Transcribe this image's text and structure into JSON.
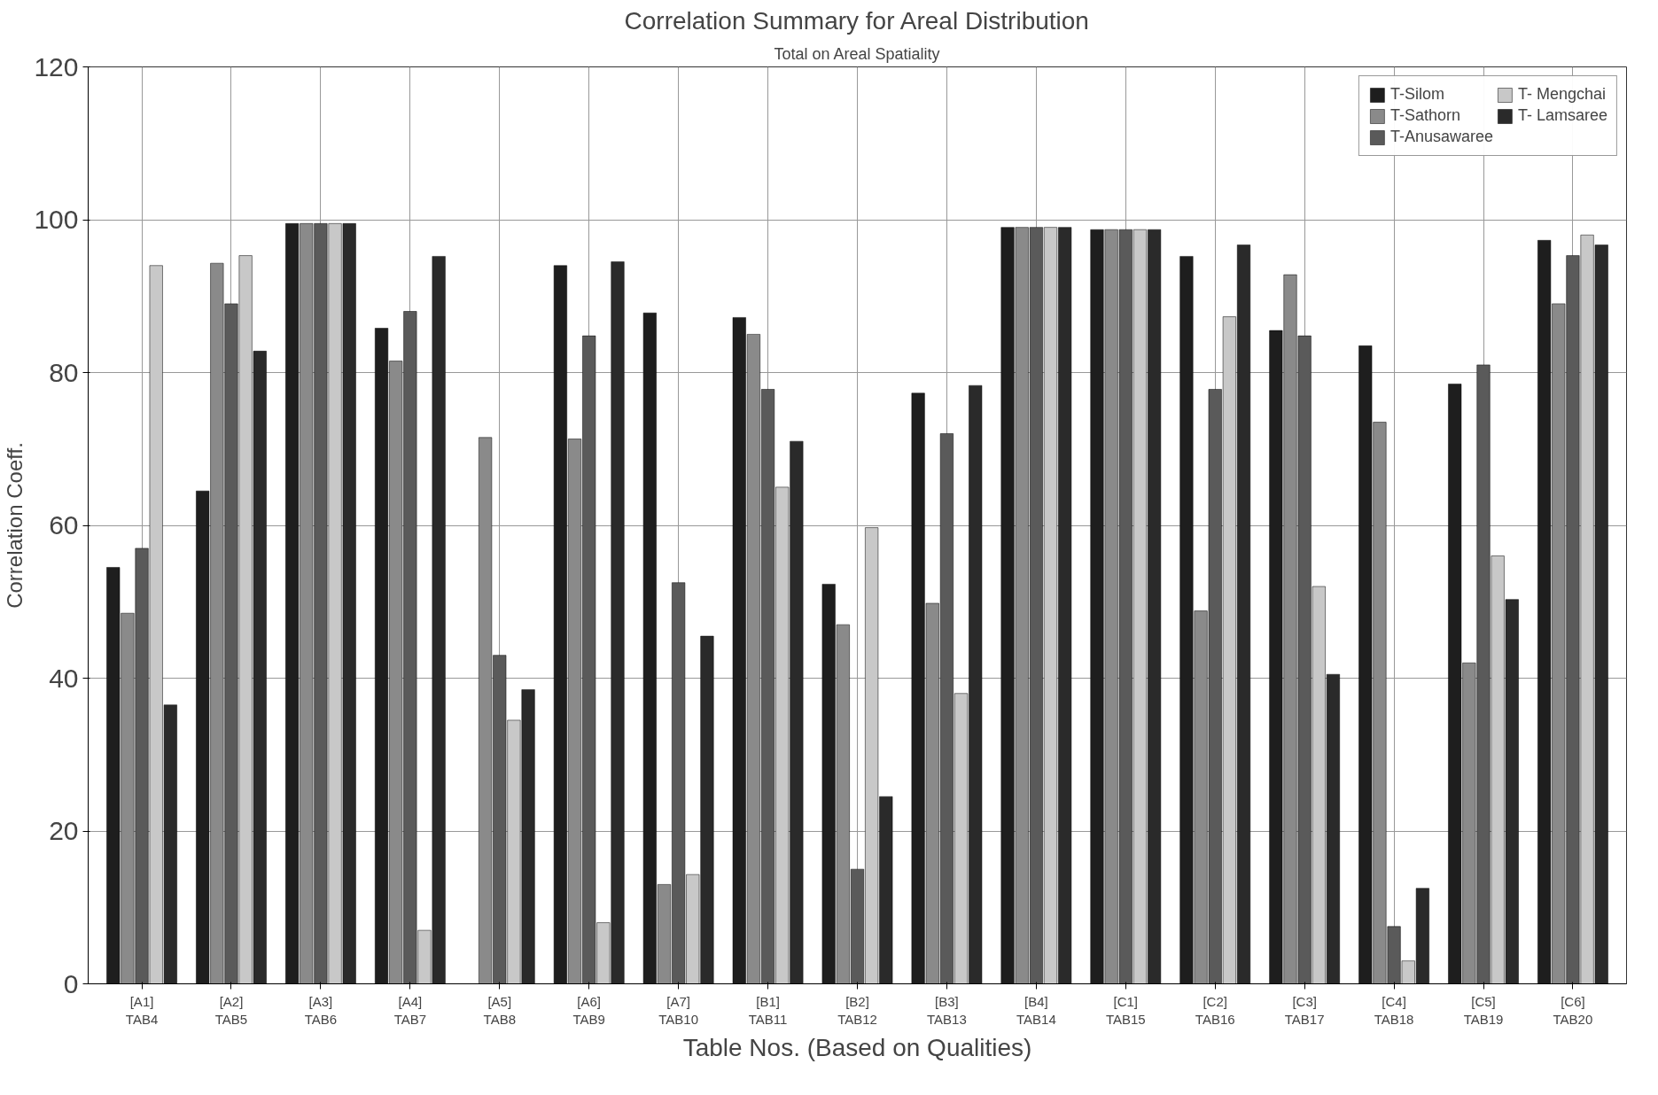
{
  "chart_data": {
    "type": "bar",
    "title": "Correlation Summary for Areal Distribution",
    "subtitle": "Total on Areal Spatiality",
    "xlabel": "Table Nos. (Based on Qualities)",
    "ylabel": "Correlation Coeff.",
    "categories": [
      "[A1]\nTAB4",
      "[A2]\nTAB5",
      "[A3]\nTAB6",
      "[A4]\nTAB7",
      "[A5]\nTAB8",
      "[A6]\nTAB9",
      "[A7]\nTAB10",
      "[B1]\nTAB11",
      "[B2]\nTAB12",
      "[B3]\nTAB13",
      "[B4]\nTAB14",
      "[C1]\nTAB15",
      "[C2]\nTAB16",
      "[C3]\nTAB17",
      "[C4]\nTAB18",
      "[C5]\nTAB19",
      "[C6]\nTAB20"
    ],
    "series": [
      {
        "name": "T-Silom",
        "color": "#1e1e1e",
        "values": [
          54.5,
          64.5,
          99.5,
          85.8,
          null,
          94,
          87.8,
          87.2,
          52.3,
          77.3,
          99,
          98.7,
          95.2,
          85.5,
          83.5,
          78.5,
          97.3
        ]
      },
      {
        "name": "T-Sathorn",
        "color": "#8a8a8a",
        "values": [
          48.5,
          94.3,
          99.5,
          81.5,
          71.5,
          71.3,
          13,
          85,
          47,
          49.8,
          99,
          98.7,
          48.8,
          92.8,
          73.5,
          42,
          89
        ]
      },
      {
        "name": "T-Anusawaree",
        "color": "#5a5a5a",
        "values": [
          57,
          89,
          99.5,
          88,
          43,
          84.8,
          52.5,
          77.8,
          15,
          72,
          99,
          98.7,
          77.8,
          84.8,
          7.5,
          81,
          95.3
        ]
      },
      {
        "name": "T- Mengchai",
        "color": "#c8c8c8",
        "values": [
          94,
          95.3,
          99.5,
          7,
          34.5,
          8,
          14.3,
          65,
          59.7,
          38,
          99,
          98.7,
          87.3,
          52,
          3,
          56,
          98
        ]
      },
      {
        "name": "T- Lamsaree",
        "color": "#2a2a2a",
        "values": [
          36.5,
          82.8,
          99.5,
          95.2,
          38.5,
          94.5,
          45.5,
          71,
          24.5,
          78.3,
          99,
          98.7,
          96.7,
          40.5,
          12.5,
          50.3,
          96.7
        ]
      }
    ],
    "ylim": [
      0,
      120
    ],
    "yticks": [
      0,
      20,
      40,
      60,
      80,
      100,
      120
    ],
    "grid": true,
    "legend": "top right"
  }
}
